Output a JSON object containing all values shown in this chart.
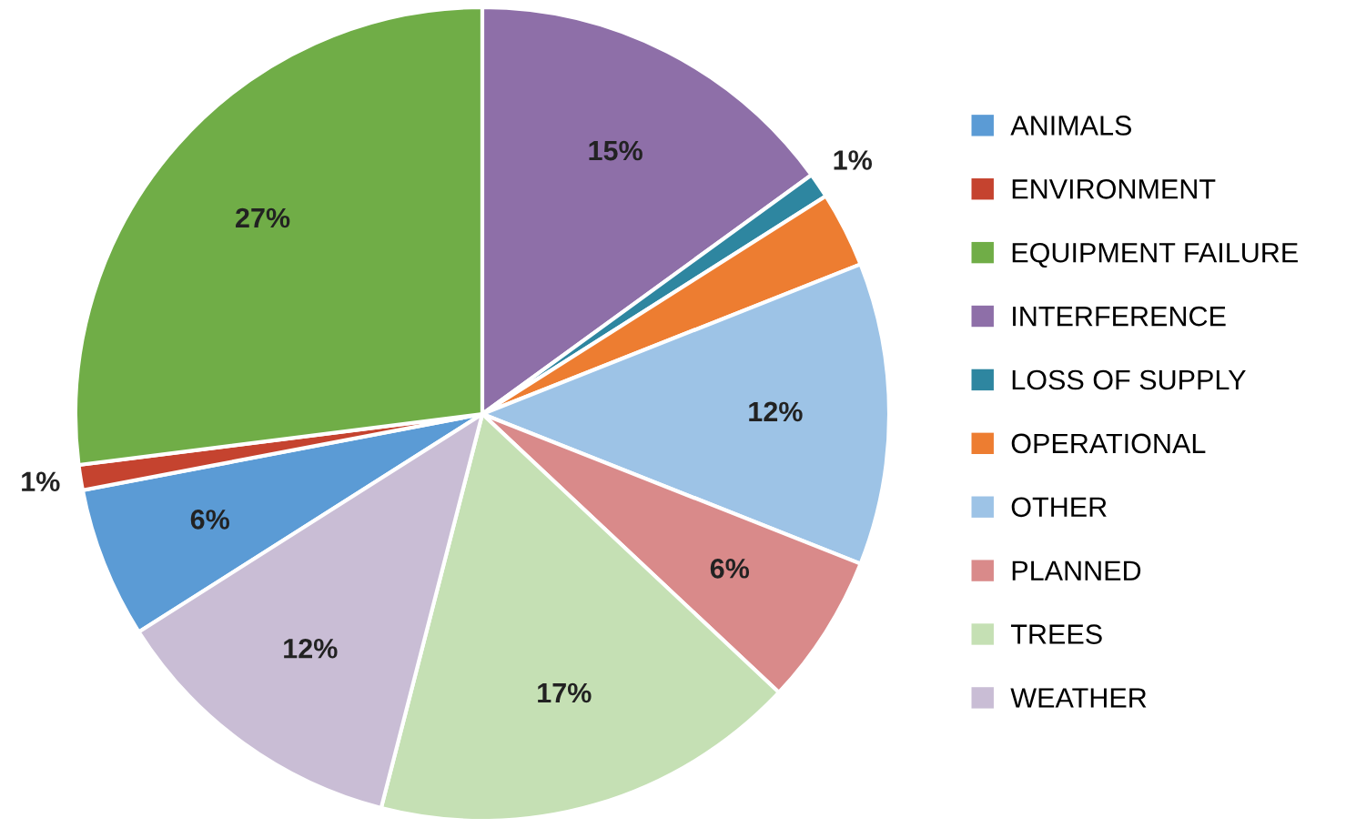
{
  "chart_data": {
    "type": "pie",
    "categories": [
      "ANIMALS",
      "ENVIRONMENT",
      "EQUIPMENT FAILURE",
      "INTERFERENCE",
      "LOSS OF SUPPLY",
      "OPERATIONAL",
      "OTHER",
      "PLANNED",
      "TREES",
      "WEATHER"
    ],
    "values": [
      6,
      1,
      27,
      15,
      1,
      3,
      12,
      6,
      17,
      12
    ],
    "value_labels": [
      "6%",
      "1%",
      "27%",
      "15%",
      "1%",
      null,
      "12%",
      "6%",
      "17%",
      "12%"
    ],
    "colors": [
      "#5b9bd5",
      "#c5432f",
      "#70ad47",
      "#8e6fa8",
      "#2e86a0",
      "#ed7d31",
      "#9dc3e6",
      "#d98a8a",
      "#c5e0b4",
      "#c9bdd5"
    ],
    "legend": "right"
  }
}
